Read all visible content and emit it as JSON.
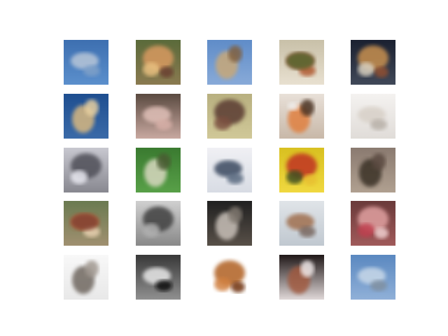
{
  "figure": {
    "rows": 5,
    "cols": 5
  },
  "samples": [
    {
      "bg": "#3d6fb0",
      "bg2": "#5b8fcc",
      "blobs": [
        {
          "c": "#b8c6d8"
        },
        {
          "c": "#7fa0c8"
        }
      ]
    },
    {
      "bg": "#5a6a3a",
      "bg2": "#8a7a50",
      "blobs": [
        {
          "c": "#d89a60"
        },
        {
          "c": "#e8c080"
        },
        {
          "c": "#6a4030"
        }
      ]
    },
    {
      "bg": "#5f8cc8",
      "bg2": "#88aad8",
      "blobs": [
        {
          "c": "#c8a878"
        },
        {
          "c": "#806040"
        }
      ]
    },
    {
      "bg": "#c8c0a8",
      "bg2": "#e8e0d0",
      "blobs": [
        {
          "c": "#8a3a20"
        },
        {
          "c": "#b05a30"
        },
        {
          "c": "#5a6a30"
        }
      ]
    },
    {
      "bg": "#1a2030",
      "bg2": "#404858",
      "blobs": [
        {
          "c": "#c89050"
        },
        {
          "c": "#d8d0c0"
        },
        {
          "c": "#905030"
        }
      ]
    },
    {
      "bg": "#1e4e90",
      "bg2": "#3a6aa8",
      "blobs": [
        {
          "c": "#d8b880"
        },
        {
          "c": "#e8d0a0"
        }
      ]
    },
    {
      "bg": "#5a4a40",
      "bg2": "#c8a8a0",
      "blobs": [
        {
          "c": "#e0c0b8"
        },
        {
          "c": "#d8b0a8"
        }
      ]
    },
    {
      "bg": "#b8b080",
      "bg2": "#d0c898",
      "blobs": [
        {
          "c": "#5a3a30"
        },
        {
          "c": "#7a5040"
        }
      ]
    },
    {
      "bg": "#e8e0d8",
      "bg2": "#c8b8a8",
      "blobs": [
        {
          "c": "#e08040"
        },
        {
          "c": "#4a3020"
        },
        {
          "c": "#f0f0f0"
        }
      ]
    },
    {
      "bg": "#f4f2f0",
      "bg2": "#e0dcd8",
      "blobs": [
        {
          "c": "#d8d0c8"
        },
        {
          "c": "#b8b0a8"
        }
      ]
    },
    {
      "bg": "#c8c8d0",
      "bg2": "#888890",
      "blobs": [
        {
          "c": "#505058"
        },
        {
          "c": "#e8e8f0"
        }
      ]
    },
    {
      "bg": "#3a7a30",
      "bg2": "#58a048",
      "blobs": [
        {
          "c": "#d8d8c0"
        },
        {
          "c": "#4a5a30"
        }
      ]
    },
    {
      "bg": "#f0f0f4",
      "bg2": "#d8dce4",
      "blobs": [
        {
          "c": "#3a4a60"
        },
        {
          "c": "#5a6a80"
        }
      ]
    },
    {
      "bg": "#d8c020",
      "bg2": "#f0d840",
      "blobs": [
        {
          "c": "#c03020"
        },
        {
          "c": "#405020"
        },
        {
          "c": "#e8c030"
        }
      ]
    },
    {
      "bg": "#8a7a70",
      "bg2": "#b0a090",
      "blobs": [
        {
          "c": "#3a3028"
        },
        {
          "c": "#5a4a40"
        }
      ]
    },
    {
      "bg": "#6a7a50",
      "bg2": "#a09070",
      "blobs": [
        {
          "c": "#c87040"
        },
        {
          "c": "#e8d0b0"
        },
        {
          "c": "#804030"
        }
      ]
    },
    {
      "bg": "#d0d0d0",
      "bg2": "#888888",
      "blobs": [
        {
          "c": "#404040"
        },
        {
          "c": "#b0b0b0"
        }
      ]
    },
    {
      "bg": "#202020",
      "bg2": "#585048",
      "blobs": [
        {
          "c": "#c8c0b8"
        },
        {
          "c": "#807870"
        }
      ]
    },
    {
      "bg": "#e0e4e8",
      "bg2": "#c0c8d0",
      "blobs": [
        {
          "c": "#a07050"
        },
        {
          "c": "#786860"
        }
      ]
    },
    {
      "bg": "#6a3a3a",
      "bg2": "#a05a5a",
      "blobs": [
        {
          "c": "#e0a0a0"
        },
        {
          "c": "#c04050"
        },
        {
          "c": "#f0d0d0"
        }
      ]
    },
    {
      "bg": "#f8f8f8",
      "bg2": "#e8e8e8",
      "blobs": [
        {
          "c": "#706860"
        },
        {
          "c": "#a09890"
        }
      ]
    },
    {
      "bg": "#383838",
      "bg2": "#909090",
      "blobs": [
        {
          "c": "#e8e8e8"
        },
        {
          "c": "#101010"
        }
      ]
    },
    {
      "bg": "#ffffff",
      "bg2": "#ffffff",
      "blobs": [
        {
          "c": "#b06020"
        },
        {
          "c": "#d08040"
        },
        {
          "c": "#703010"
        }
      ]
    },
    {
      "bg": "#201818",
      "bg2": "#e0d8d8",
      "blobs": [
        {
          "c": "#a05a40"
        },
        {
          "c": "#f0e8e8"
        }
      ]
    },
    {
      "bg": "#5a88c0",
      "bg2": "#90b0d8",
      "blobs": [
        {
          "c": "#c8d8e8"
        },
        {
          "c": "#8090a0"
        }
      ]
    }
  ]
}
